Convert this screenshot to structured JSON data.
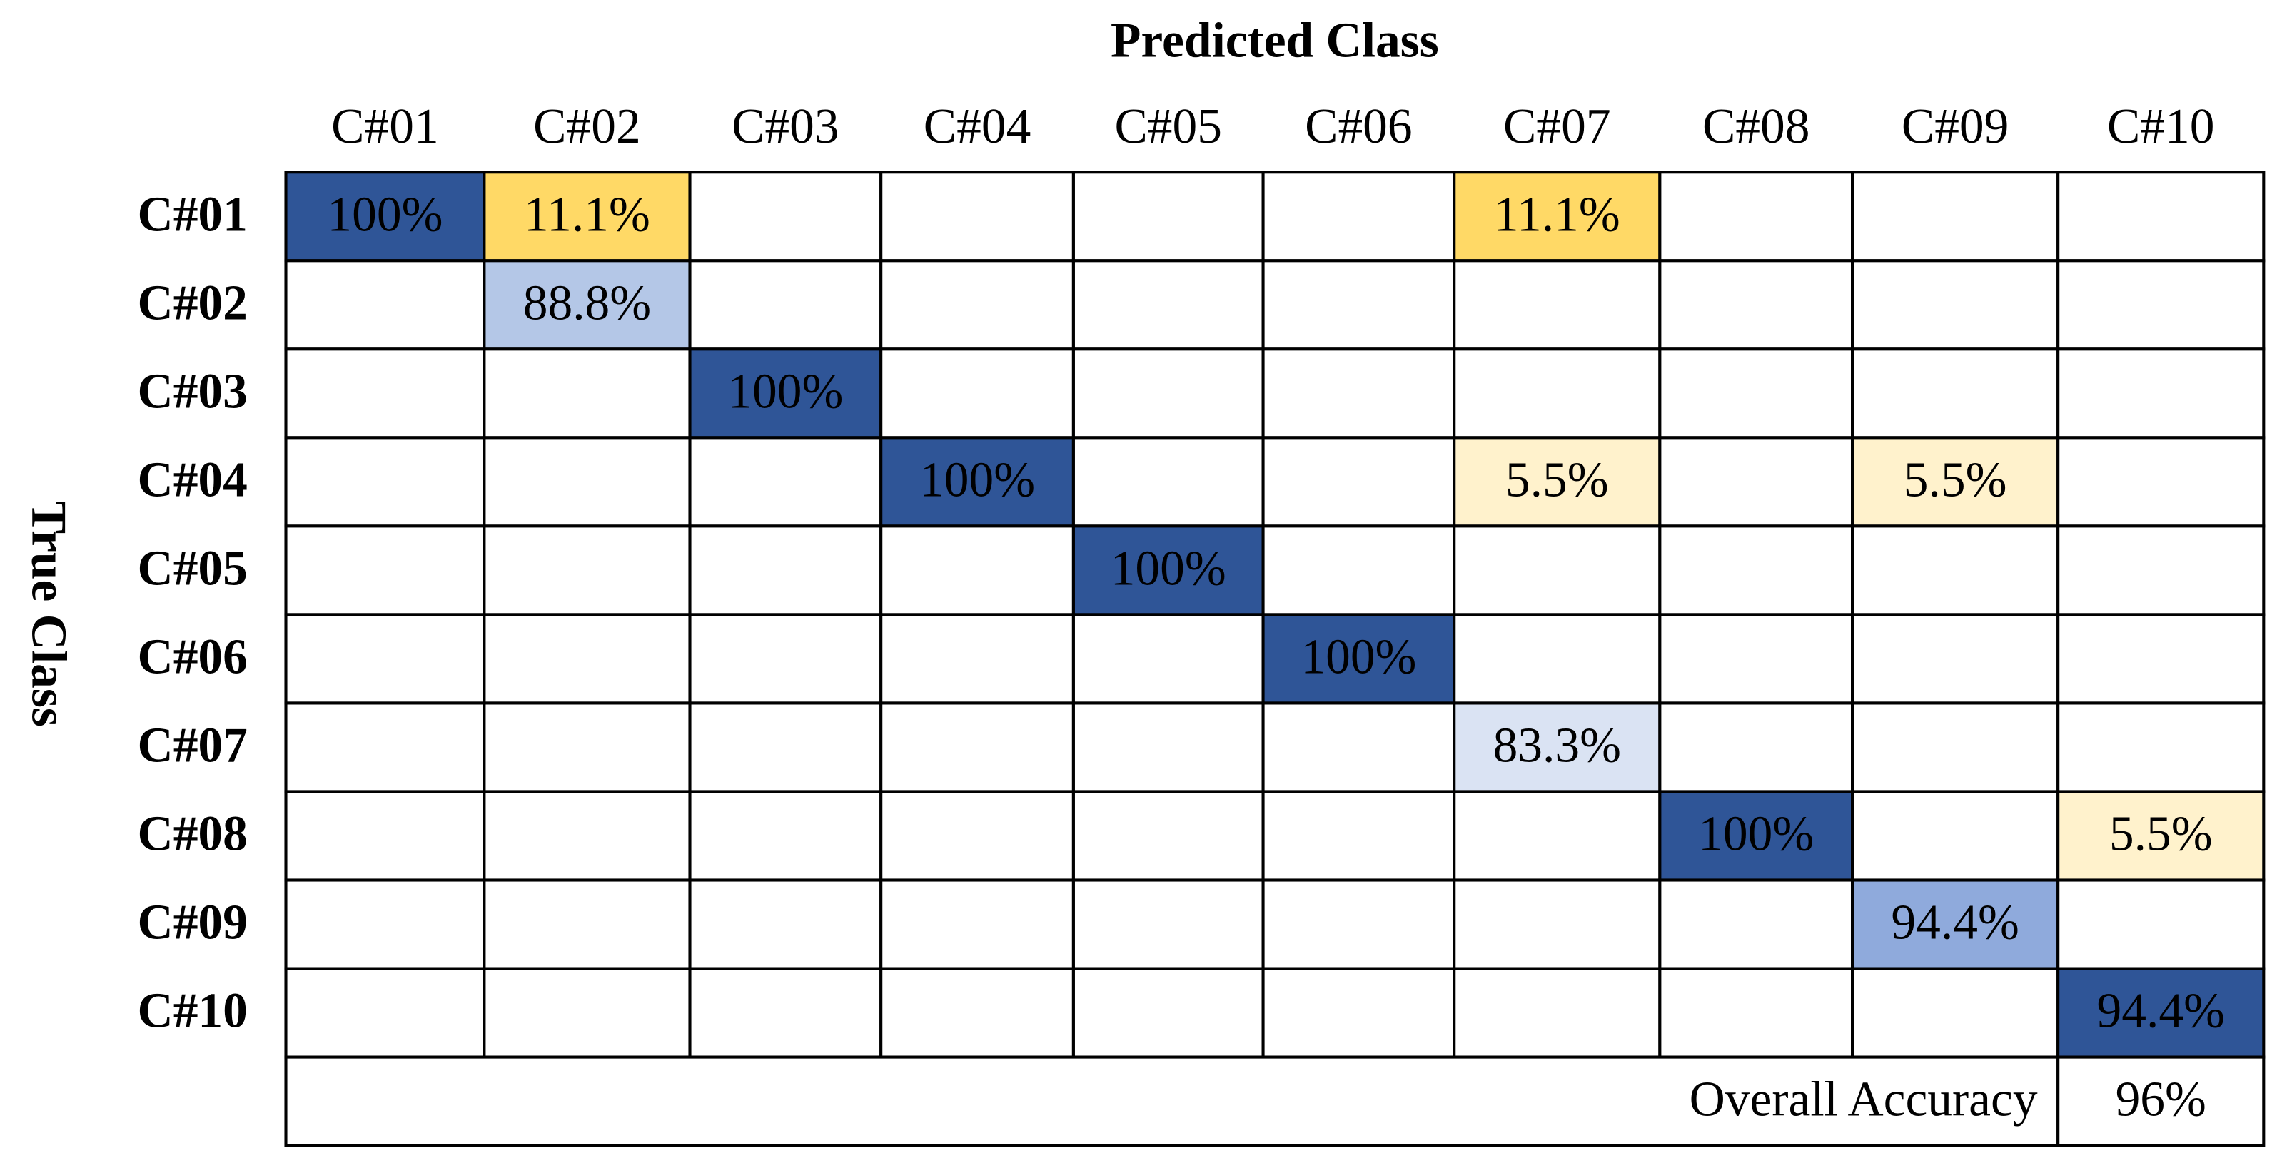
{
  "chart_data": {
    "type": "heatmap",
    "x_label": "Predicted Class",
    "y_label": "True Class",
    "x_categories": [
      "C#01",
      "C#02",
      "C#03",
      "C#04",
      "C#05",
      "C#06",
      "C#07",
      "C#08",
      "C#09",
      "C#10"
    ],
    "y_categories": [
      "C#01",
      "C#02",
      "C#03",
      "C#04",
      "C#05",
      "C#06",
      "C#07",
      "C#08",
      "C#09",
      "C#10"
    ],
    "values": [
      [
        100,
        11.1,
        null,
        null,
        null,
        null,
        11.1,
        null,
        null,
        null
      ],
      [
        null,
        88.8,
        null,
        null,
        null,
        null,
        null,
        null,
        null,
        null
      ],
      [
        null,
        null,
        100,
        null,
        null,
        null,
        null,
        null,
        null,
        null
      ],
      [
        null,
        null,
        null,
        100,
        null,
        null,
        5.5,
        null,
        5.5,
        null
      ],
      [
        null,
        null,
        null,
        null,
        100,
        null,
        null,
        null,
        null,
        null
      ],
      [
        null,
        null,
        null,
        null,
        null,
        100,
        null,
        null,
        null,
        null
      ],
      [
        null,
        null,
        null,
        null,
        null,
        null,
        83.3,
        null,
        null,
        null
      ],
      [
        null,
        null,
        null,
        null,
        null,
        null,
        null,
        100,
        null,
        5.5
      ],
      [
        null,
        null,
        null,
        null,
        null,
        null,
        null,
        null,
        94.4,
        null
      ],
      [
        null,
        null,
        null,
        null,
        null,
        null,
        null,
        null,
        null,
        94.4
      ]
    ],
    "value_labels": [
      [
        "100%",
        "11.1%",
        null,
        null,
        null,
        null,
        "11.1%",
        null,
        null,
        null
      ],
      [
        null,
        "88.8%",
        null,
        null,
        null,
        null,
        null,
        null,
        null,
        null
      ],
      [
        null,
        null,
        "100%",
        null,
        null,
        null,
        null,
        null,
        null,
        null
      ],
      [
        null,
        null,
        null,
        "100%",
        null,
        null,
        "5.5%",
        null,
        "5.5%",
        null
      ],
      [
        null,
        null,
        null,
        null,
        "100%",
        null,
        null,
        null,
        null,
        null
      ],
      [
        null,
        null,
        null,
        null,
        null,
        "100%",
        null,
        null,
        null,
        null
      ],
      [
        null,
        null,
        null,
        null,
        null,
        null,
        "83.3%",
        null,
        null,
        null
      ],
      [
        null,
        null,
        null,
        null,
        null,
        null,
        null,
        "100%",
        null,
        "5.5%"
      ],
      [
        null,
        null,
        null,
        null,
        null,
        null,
        null,
        null,
        "94.4%",
        null
      ],
      [
        null,
        null,
        null,
        null,
        null,
        null,
        null,
        null,
        null,
        "94.4%"
      ]
    ],
    "cell_colors": [
      [
        "#2f5597",
        "#ffd966",
        null,
        null,
        null,
        null,
        "#ffd966",
        null,
        null,
        null
      ],
      [
        null,
        "#b4c7e7",
        null,
        null,
        null,
        null,
        null,
        null,
        null,
        null
      ],
      [
        null,
        null,
        "#2f5597",
        null,
        null,
        null,
        null,
        null,
        null,
        null
      ],
      [
        null,
        null,
        null,
        "#2f5597",
        null,
        null,
        "#fff2cc",
        null,
        "#fff2cc",
        null
      ],
      [
        null,
        null,
        null,
        null,
        "#2f5597",
        null,
        null,
        null,
        null,
        null
      ],
      [
        null,
        null,
        null,
        null,
        null,
        "#2f5597",
        null,
        null,
        null,
        null
      ],
      [
        null,
        null,
        null,
        null,
        null,
        null,
        "#dae3f3",
        null,
        null,
        null
      ],
      [
        null,
        null,
        null,
        null,
        null,
        null,
        null,
        "#2f5597",
        null,
        "#fff2cc"
      ],
      [
        null,
        null,
        null,
        null,
        null,
        null,
        null,
        null,
        "#8faadc",
        null
      ],
      [
        null,
        null,
        null,
        null,
        null,
        null,
        null,
        null,
        null,
        "#2f5597"
      ]
    ],
    "overall_label": "Overall Accuracy",
    "overall_value": 96,
    "overall_value_label": "96%"
  }
}
